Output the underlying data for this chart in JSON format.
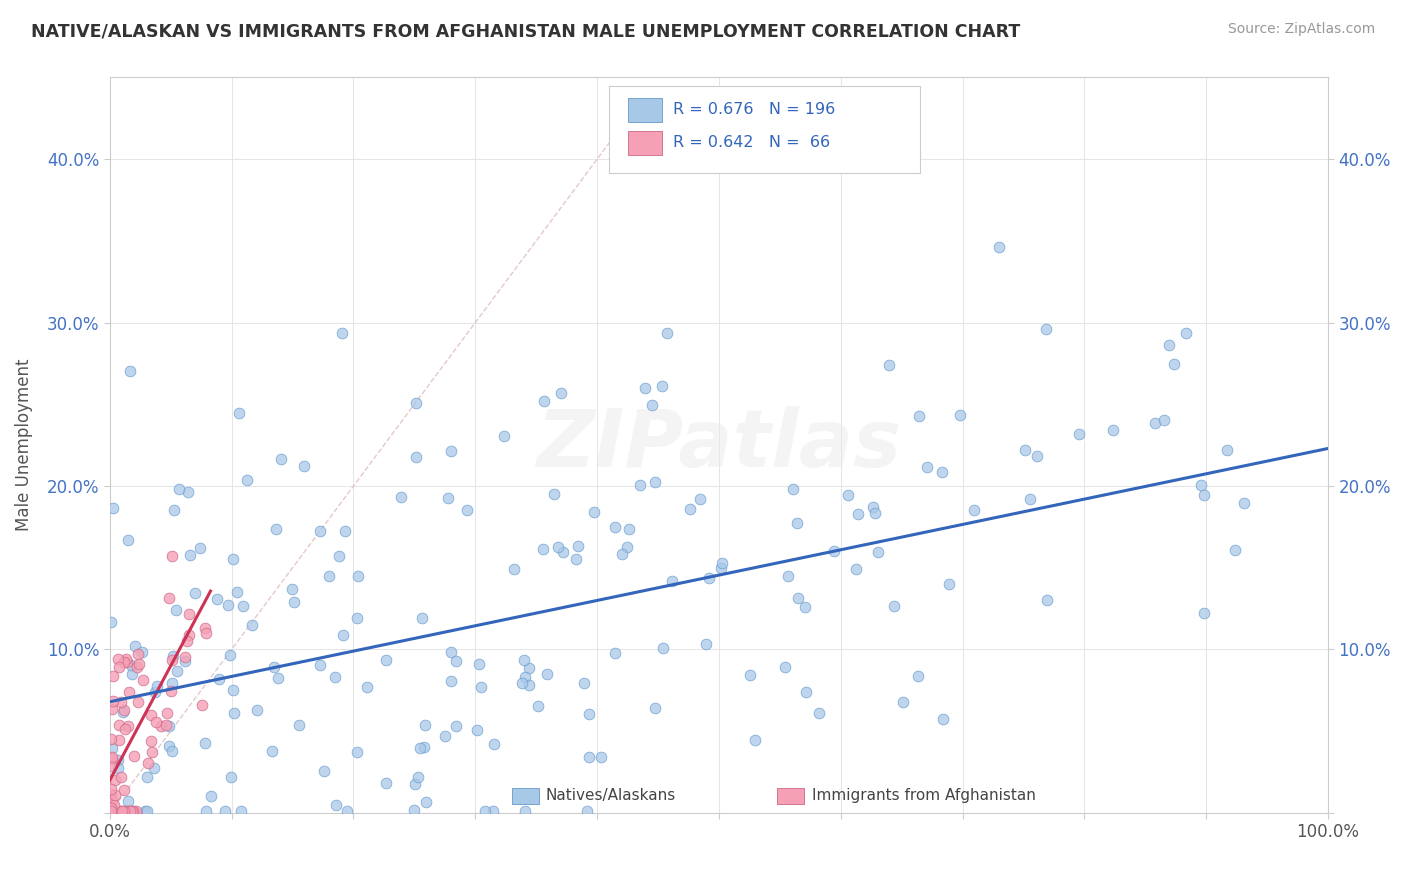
{
  "title": "NATIVE/ALASKAN VS IMMIGRANTS FROM AFGHANISTAN MALE UNEMPLOYMENT CORRELATION CHART",
  "source": "Source: ZipAtlas.com",
  "ylabel": "Male Unemployment",
  "xlim": [
    0,
    1.0
  ],
  "ylim": [
    0,
    0.45
  ],
  "xticks": [
    0.0,
    0.1,
    0.2,
    0.3,
    0.4,
    0.5,
    0.6,
    0.7,
    0.8,
    0.9,
    1.0
  ],
  "yticks": [
    0.0,
    0.1,
    0.2,
    0.3,
    0.4
  ],
  "native_color": "#a8c8e8",
  "native_edge": "#6699cc",
  "afghan_color": "#f5a0b5",
  "afghan_edge": "#cc6688",
  "native_R": 0.676,
  "native_N": 196,
  "afghan_R": 0.642,
  "afghan_N": 66,
  "legend_label1": "Natives/Alaskans",
  "legend_label2": "Immigrants from Afghanistan",
  "line_color_native": "#3366bb",
  "line_color_afghan": "#cc3355",
  "diag_color": "#ddbbbb",
  "watermark": "ZIPatlas",
  "bg_color": "#ffffff",
  "title_color": "#333333",
  "source_color": "#999999",
  "ylabel_color": "#555555",
  "tick_color": "#4472c4",
  "grid_color": "#e0e0e0"
}
